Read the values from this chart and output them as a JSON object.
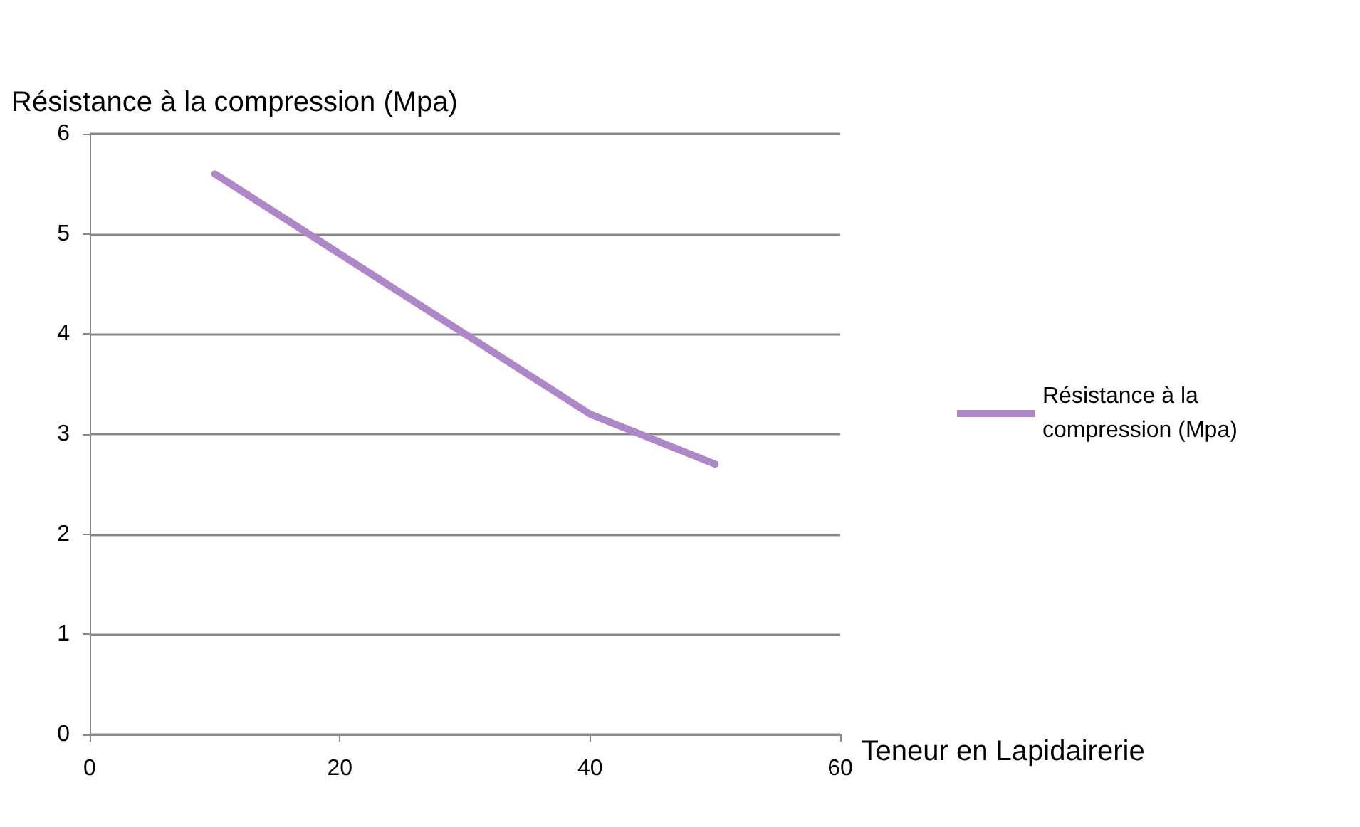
{
  "chart_data": {
    "type": "line",
    "ylabel": "Résistance à la compression (Mpa)",
    "xlabel": "Teneur en Lapidairerie",
    "x": [
      10,
      20,
      30,
      40,
      50
    ],
    "series": [
      {
        "name": "Résistance à la compression (Mpa)",
        "color": "#ad87c8",
        "values": [
          5.6,
          4.8,
          4.0,
          3.2,
          2.7
        ]
      }
    ],
    "xlim": [
      0,
      60
    ],
    "xticks": [
      0,
      20,
      40,
      60
    ],
    "ylim": [
      0,
      6
    ],
    "yticks": [
      0,
      1,
      2,
      3,
      4,
      5,
      6
    ],
    "grid": "y",
    "legend": "right",
    "marker": "none",
    "line_style": "solid"
  }
}
